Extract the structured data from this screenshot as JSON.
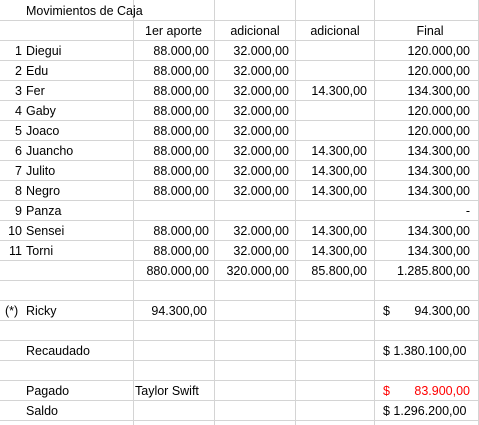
{
  "sheet": {
    "title": "Movimientos de Caja",
    "headers": {
      "aporte": "1er aporte",
      "adicional1": "adicional",
      "adicional2": "adicional",
      "final": "Final"
    },
    "rows": [
      {
        "num": "1",
        "name": "Diegui",
        "aporte": "88.000,00",
        "ad1": "32.000,00",
        "ad2": "",
        "final": "120.000,00"
      },
      {
        "num": "2",
        "name": "Edu",
        "aporte": "88.000,00",
        "ad1": "32.000,00",
        "ad2": "",
        "final": "120.000,00"
      },
      {
        "num": "3",
        "name": "Fer",
        "aporte": "88.000,00",
        "ad1": "32.000,00",
        "ad2": "14.300,00",
        "final": "134.300,00"
      },
      {
        "num": "4",
        "name": "Gaby",
        "aporte": "88.000,00",
        "ad1": "32.000,00",
        "ad2": "",
        "final": "120.000,00"
      },
      {
        "num": "5",
        "name": "Joaco",
        "aporte": "88.000,00",
        "ad1": "32.000,00",
        "ad2": "",
        "final": "120.000,00"
      },
      {
        "num": "6",
        "name": "Juancho",
        "aporte": "88.000,00",
        "ad1": "32.000,00",
        "ad2": "14.300,00",
        "final": "134.300,00"
      },
      {
        "num": "7",
        "name": "Julito",
        "aporte": "88.000,00",
        "ad1": "32.000,00",
        "ad2": "14.300,00",
        "final": "134.300,00"
      },
      {
        "num": "8",
        "name": "Negro",
        "aporte": "88.000,00",
        "ad1": "32.000,00",
        "ad2": "14.300,00",
        "final": "134.300,00"
      },
      {
        "num": "9",
        "name": "Panza",
        "aporte": "",
        "ad1": "",
        "ad2": "",
        "final": "-"
      },
      {
        "num": "10",
        "name": "Sensei",
        "aporte": "88.000,00",
        "ad1": "32.000,00",
        "ad2": "14.300,00",
        "final": "134.300,00"
      },
      {
        "num": "11",
        "name": "Torni",
        "aporte": "88.000,00",
        "ad1": "32.000,00",
        "ad2": "14.300,00",
        "final": "134.300,00"
      }
    ],
    "totals": {
      "aporte": "880.000,00",
      "ad1": "320.000,00",
      "ad2": "85.800,00",
      "final": "1.285.800,00"
    },
    "ricky": {
      "mark": "(*)",
      "name": "Ricky",
      "aporte": "94.300,00",
      "currency": "$",
      "final": "94.300,00"
    },
    "recaudado": {
      "label": "Recaudado",
      "value": "$ 1.380.100,00"
    },
    "pagado": {
      "label": "Pagado",
      "concept": "Taylor Swift",
      "currency": "$",
      "value": "83.900,00"
    },
    "saldo": {
      "label": "Saldo",
      "value": "$ 1.296.200,00"
    },
    "colors": {
      "grid": "#d4d4d4",
      "negative": "#ff0000"
    }
  }
}
